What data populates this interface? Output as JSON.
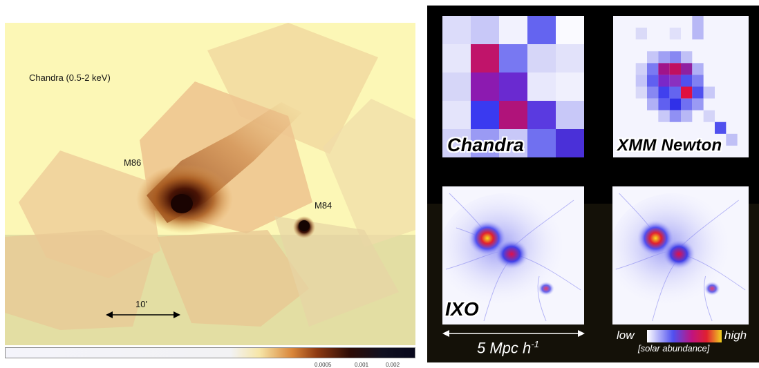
{
  "left": {
    "instrument_label": "Chandra (0.5-2 keV)",
    "galaxy_m86": "M86",
    "galaxy_m84": "M84",
    "scale_label": "10'",
    "colorbar_ticks": [
      "0.0005",
      "0.001",
      "0.002"
    ]
  },
  "right": {
    "tiles": [
      {
        "label": "Chandra"
      },
      {
        "label": "XMM Newton"
      },
      {
        "label": "IXO"
      },
      {
        "label": ""
      }
    ],
    "scale_label": "5 Mpc h",
    "scale_superscript": "-1",
    "legend_low": "low",
    "legend_high": "high",
    "legend_caption": "[solar abundance]"
  },
  "colors": {
    "background_light": "#fcf7b6",
    "background_lower": "#e3dea3",
    "emission_dark": "#2a0a05",
    "panel_black": "#000000",
    "abundance_low": "#ffffff",
    "abundance_mid": "#5050f0",
    "abundance_high": "#f0d020"
  }
}
